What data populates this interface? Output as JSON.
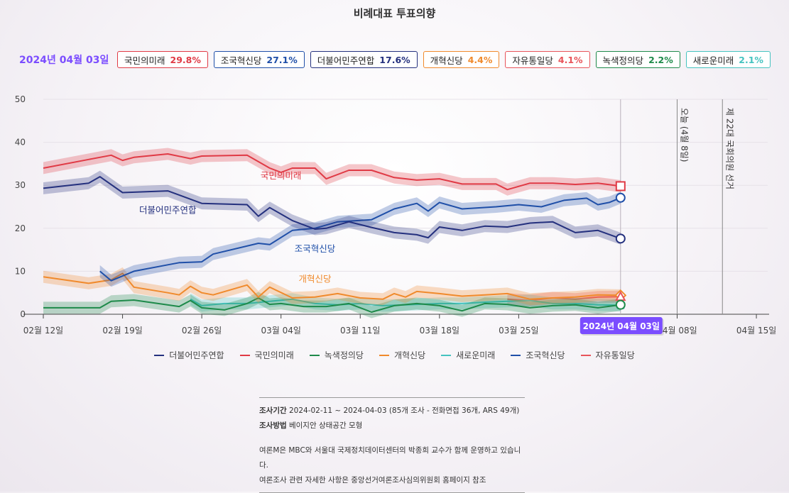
{
  "title": "비례대표 투표의향",
  "date_label": "2024년 04월 03일",
  "badges": [
    {
      "name": "국민의미래",
      "value": "29.8%",
      "color": "#e03a45"
    },
    {
      "name": "조국혁신당",
      "value": "27.1%",
      "color": "#1f4fa8"
    },
    {
      "name": "더불어민주연합",
      "value": "17.6%",
      "color": "#24307e"
    },
    {
      "name": "개혁신당",
      "value": "4.4%",
      "color": "#f08a2c"
    },
    {
      "name": "자유통일당",
      "value": "4.1%",
      "color": "#e8545a"
    },
    {
      "name": "녹색정의당",
      "value": "2.2%",
      "color": "#1e8a4a"
    },
    {
      "name": "새로운미래",
      "value": "2.1%",
      "color": "#45c3c0"
    }
  ],
  "chart_data": {
    "type": "line",
    "ylim": [
      0,
      50
    ],
    "y_ticks": [
      0,
      10,
      20,
      30,
      40,
      50
    ],
    "x_range": [
      "2024-02-12",
      "2024-04-16"
    ],
    "x_ticks": [
      {
        "date": "2024-02-12",
        "label": "02월 12일"
      },
      {
        "date": "2024-02-19",
        "label": "02월 19일"
      },
      {
        "date": "2024-02-26",
        "label": "02월 26일"
      },
      {
        "date": "2024-03-04",
        "label": "03월 04일"
      },
      {
        "date": "2024-03-11",
        "label": "03월 11일"
      },
      {
        "date": "2024-03-18",
        "label": "03월 18일"
      },
      {
        "date": "2024-03-25",
        "label": "03월 25일"
      },
      {
        "date": "2024-04-08",
        "label": "04월 08일"
      },
      {
        "date": "2024-04-15",
        "label": "04월 15일"
      }
    ],
    "grid": true,
    "markers": [
      {
        "date": "2024-04-03",
        "label": "2024년 04월 03일"
      },
      {
        "date": "2024-04-08",
        "label": "오늘 (4월 8일)"
      },
      {
        "date": "2024-04-12",
        "label": "제 22대 국회의원 선거"
      }
    ],
    "series": [
      {
        "name": "국민의미래",
        "color": "#e03a45",
        "label": "국민의미래",
        "x": [
          "2024-02-12",
          "2024-02-16",
          "2024-02-18",
          "2024-02-19",
          "2024-02-20",
          "2024-02-23",
          "2024-02-25",
          "2024-02-26",
          "2024-03-01",
          "2024-03-03",
          "2024-03-04",
          "2024-03-05",
          "2024-03-07",
          "2024-03-08",
          "2024-03-10",
          "2024-03-12",
          "2024-03-14",
          "2024-03-16",
          "2024-03-18",
          "2024-03-20",
          "2024-03-23",
          "2024-03-24",
          "2024-03-26",
          "2024-03-28",
          "2024-03-30",
          "2024-04-01",
          "2024-04-03"
        ],
        "values": [
          34,
          36,
          37,
          35.8,
          36.5,
          37.3,
          36.2,
          36.8,
          37,
          34,
          33,
          34,
          34,
          31.5,
          33.5,
          33.5,
          31.8,
          31.2,
          31.5,
          30.3,
          30.3,
          29,
          30.5,
          30.5,
          30.2,
          30.5,
          29.8
        ]
      },
      {
        "name": "더불어민주연합",
        "color": "#24307e",
        "label": "더불어민주연합",
        "x": [
          "2024-02-12",
          "2024-02-16",
          "2024-02-17",
          "2024-02-19",
          "2024-02-23",
          "2024-02-26",
          "2024-03-01",
          "2024-03-02",
          "2024-03-03",
          "2024-03-05",
          "2024-03-07",
          "2024-03-08",
          "2024-03-10",
          "2024-03-12",
          "2024-03-14",
          "2024-03-16",
          "2024-03-17",
          "2024-03-18",
          "2024-03-20",
          "2024-03-22",
          "2024-03-24",
          "2024-03-26",
          "2024-03-28",
          "2024-03-30",
          "2024-04-01",
          "2024-04-03"
        ],
        "values": [
          29.3,
          30.5,
          32,
          28.3,
          28.7,
          25.8,
          25.5,
          22.8,
          24.8,
          21.8,
          19.8,
          20,
          21.5,
          20.2,
          19,
          18.5,
          17.8,
          20.3,
          19.5,
          20.5,
          20.3,
          21.2,
          21.5,
          19,
          19.5,
          17.6
        ]
      },
      {
        "name": "조국혁신당",
        "color": "#1f4fa8",
        "label": "조국혁신당",
        "x": [
          "2024-02-17",
          "2024-02-18",
          "2024-02-20",
          "2024-02-23",
          "2024-02-24",
          "2024-02-26",
          "2024-02-27",
          "2024-03-02",
          "2024-03-03",
          "2024-03-05",
          "2024-03-07",
          "2024-03-09",
          "2024-03-12",
          "2024-03-14",
          "2024-03-16",
          "2024-03-17",
          "2024-03-18",
          "2024-03-20",
          "2024-03-23",
          "2024-03-25",
          "2024-03-27",
          "2024-03-29",
          "2024-03-31",
          "2024-04-01",
          "2024-04-02",
          "2024-04-03"
        ],
        "values": [
          10,
          7.8,
          10,
          11.5,
          12,
          12.2,
          14,
          16.5,
          16.2,
          19.5,
          20,
          21.5,
          22,
          24.5,
          25.8,
          24,
          26,
          24.5,
          25,
          25.5,
          25,
          26.5,
          27,
          25.5,
          26,
          27.1
        ]
      },
      {
        "name": "개혁신당",
        "color": "#f08a2c",
        "label": "개혁신당",
        "x": [
          "2024-02-12",
          "2024-02-16",
          "2024-02-18",
          "2024-02-19",
          "2024-02-20",
          "2024-02-23",
          "2024-02-24",
          "2024-02-25",
          "2024-02-26",
          "2024-02-27",
          "2024-03-01",
          "2024-03-02",
          "2024-03-03",
          "2024-03-05",
          "2024-03-07",
          "2024-03-09",
          "2024-03-11",
          "2024-03-13",
          "2024-03-14",
          "2024-03-15",
          "2024-03-16",
          "2024-03-18",
          "2024-03-20",
          "2024-03-22",
          "2024-03-24",
          "2024-03-26",
          "2024-03-28",
          "2024-03-30",
          "2024-04-01",
          "2024-04-03"
        ],
        "values": [
          8.7,
          7.2,
          8,
          9.5,
          6.3,
          5,
          4.5,
          6.5,
          5,
          4.5,
          6.8,
          4,
          6.3,
          3.8,
          4,
          4.8,
          3.8,
          3.5,
          4.8,
          4,
          5.3,
          4.8,
          4.2,
          4.5,
          4.8,
          3.5,
          3.8,
          4,
          4.5,
          4.4
        ]
      },
      {
        "name": "녹색정의당",
        "color": "#1e8a4a",
        "label": "",
        "x": [
          "2024-02-12",
          "2024-02-17",
          "2024-02-18",
          "2024-02-20",
          "2024-02-24",
          "2024-02-25",
          "2024-02-26",
          "2024-02-28",
          "2024-03-01",
          "2024-03-02",
          "2024-03-03",
          "2024-03-04",
          "2024-03-06",
          "2024-03-08",
          "2024-03-10",
          "2024-03-12",
          "2024-03-14",
          "2024-03-16",
          "2024-03-18",
          "2024-03-20",
          "2024-03-22",
          "2024-03-24",
          "2024-03-26",
          "2024-03-28",
          "2024-03-30",
          "2024-04-01",
          "2024-04-03"
        ],
        "values": [
          1.5,
          1.5,
          3,
          3.3,
          1.8,
          3.2,
          1.5,
          1,
          2.5,
          3.8,
          2.3,
          2.5,
          1.8,
          1.8,
          2.5,
          0.5,
          2,
          2.5,
          2,
          0.8,
          2.5,
          2.3,
          1.5,
          2,
          2.2,
          1.5,
          2.2
        ]
      },
      {
        "name": "새로운미래",
        "color": "#45c3c0",
        "label": "",
        "x": [
          "2024-02-25",
          "2024-02-26",
          "2024-02-28",
          "2024-03-01",
          "2024-03-03",
          "2024-03-05",
          "2024-03-07",
          "2024-03-09",
          "2024-03-11",
          "2024-03-13",
          "2024-03-15",
          "2024-03-18",
          "2024-03-20",
          "2024-03-22",
          "2024-03-24",
          "2024-03-26",
          "2024-03-28",
          "2024-03-30",
          "2024-04-01",
          "2024-04-03"
        ],
        "values": [
          3.5,
          2,
          2.5,
          2.5,
          3,
          3.5,
          2.5,
          2.2,
          2.5,
          2,
          2.2,
          2.5,
          2.5,
          2.8,
          3,
          3.2,
          2.5,
          2.5,
          2.2,
          2.1
        ]
      },
      {
        "name": "자유통일당",
        "color": "#e8545a",
        "label": "",
        "x": [
          "2024-03-24",
          "2024-03-26",
          "2024-03-28",
          "2024-03-30",
          "2024-04-01",
          "2024-04-03"
        ],
        "values": [
          3.5,
          3.2,
          3.8,
          3.5,
          4,
          4.1
        ]
      }
    ],
    "legend": [
      "더불어민주연합",
      "국민의미래",
      "녹색정의당",
      "개혁신당",
      "새로운미래",
      "조국혁신당",
      "자유통일당"
    ],
    "legend_position": "bottom"
  },
  "notes": {
    "period_label": "조사기간",
    "period_value": "2024-02-11 ~ 2024-04-03 (85개 조사 - 전화면접 36개, ARS 49개)",
    "method_label": "조사방법",
    "method_value": "베이지안 상태공간 모형",
    "line1": "여론M은 MBC와 서울대 국제정치데이터센터의 박종희 교수가 함께 운영하고 있습니다.",
    "line2": "여론조사 관련 자세한 사항은 중앙선거여론조사심의위원회 홈페이지 참조"
  }
}
